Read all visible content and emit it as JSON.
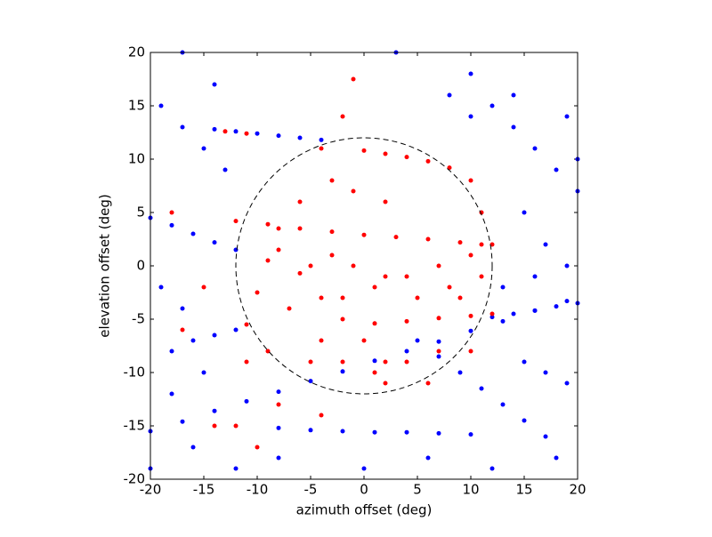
{
  "chart_data": {
    "type": "scatter",
    "xlabel": "azimuth offset (deg)",
    "ylabel": "elevation offset (deg)",
    "xlim": [
      -20,
      20
    ],
    "ylim": [
      -20,
      20
    ],
    "xticks": [
      -20,
      -15,
      -10,
      -5,
      0,
      5,
      10,
      15,
      20
    ],
    "yticks": [
      -20,
      -15,
      -10,
      -5,
      0,
      5,
      10,
      15,
      20
    ],
    "circle": {
      "center": [
        0,
        0
      ],
      "radius": 12
    },
    "series": [
      {
        "name": "blue",
        "color": "#0000ff",
        "x": [
          -20,
          -17,
          -14,
          -11,
          -8,
          -5,
          -2,
          1,
          4,
          7,
          10,
          13,
          16,
          19,
          -14,
          -12,
          -10,
          -8,
          -6,
          -4,
          5,
          7,
          9,
          11,
          13,
          15,
          17,
          -8,
          -5,
          -2,
          1,
          4,
          7,
          10,
          12,
          14,
          16,
          18,
          20,
          -20,
          -18,
          -16,
          -14,
          -12,
          -19,
          -17,
          -15,
          -13,
          10,
          12,
          14,
          16,
          18,
          20,
          -20,
          -16,
          -12,
          -8,
          0,
          6,
          12,
          18,
          -18,
          -16,
          -14,
          -12,
          15,
          17,
          19,
          -17,
          -14,
          3,
          8,
          10,
          14,
          19,
          20,
          15,
          17,
          19,
          13,
          16,
          -19,
          -17,
          -15,
          -18
        ],
        "y": [
          -15.5,
          -14.6,
          -13.6,
          -12.7,
          -11.8,
          -10.8,
          -9.9,
          -8.9,
          -8.0,
          -7.1,
          -6.1,
          -5.2,
          -4.2,
          -3.3,
          12.8,
          12.6,
          12.4,
          12.2,
          12.0,
          11.8,
          -7,
          -8.5,
          -10,
          -11.5,
          -13,
          -14.5,
          -16,
          -15.2,
          -15.4,
          -15.5,
          -15.6,
          -15.6,
          -15.7,
          -15.8,
          -4.8,
          -4.5,
          -4.2,
          -3.8,
          -3.5,
          4.5,
          3.8,
          3,
          2.2,
          1.5,
          15,
          13,
          11,
          9,
          18,
          15,
          13,
          11,
          9,
          7,
          -19,
          -17,
          -19,
          -18,
          -19,
          -18,
          -19,
          -18,
          -8,
          -7,
          -6.5,
          -6,
          -9,
          -10,
          -11,
          20,
          17,
          20,
          16,
          14,
          16,
          14,
          10,
          5,
          2,
          0,
          -2,
          -1,
          -2,
          -4,
          -10,
          -12
        ]
      },
      {
        "name": "red",
        "color": "#ff0000",
        "x": [
          -12,
          -9,
          -6,
          -3,
          0,
          3,
          6,
          9,
          11,
          -8,
          -6,
          -4,
          -2,
          0,
          2,
          -11,
          -10,
          -9,
          -8,
          -2,
          1,
          4,
          7,
          10,
          12,
          1,
          4,
          7,
          10,
          12,
          0,
          2,
          4,
          6,
          8,
          -13,
          -11,
          -5,
          -3,
          -1,
          2,
          5,
          8,
          -4,
          -2,
          1,
          4,
          7,
          -6,
          -3,
          -1,
          2,
          -4,
          -2,
          -1,
          -11,
          -9,
          -12,
          -14,
          -10,
          10,
          9,
          11,
          -15,
          -17,
          -18,
          -8,
          -4,
          2,
          6,
          11,
          10,
          -7,
          -5
        ],
        "y": [
          4.2,
          3.9,
          3.5,
          3.2,
          2.9,
          2.7,
          2.5,
          2.2,
          2.0,
          1.5,
          -0.7,
          -3,
          -5,
          -7,
          -9,
          -5.5,
          -2.5,
          0.5,
          3.5,
          -3,
          -2,
          -1,
          0,
          1,
          2,
          -5.4,
          -5.2,
          -4.9,
          -4.7,
          -4.5,
          10.8,
          10.5,
          10.2,
          9.8,
          9.2,
          12.6,
          12.4,
          0,
          1,
          0,
          -1,
          -3,
          -2,
          -7,
          -9,
          -10,
          -9,
          -8,
          6,
          8,
          7,
          6,
          11,
          14,
          17.5,
          -9,
          -8,
          -15,
          -15,
          -17,
          -8,
          -3,
          -1,
          -2,
          -6,
          5,
          -13,
          -14,
          -11,
          -11,
          5,
          8,
          -4,
          -9
        ]
      }
    ]
  }
}
